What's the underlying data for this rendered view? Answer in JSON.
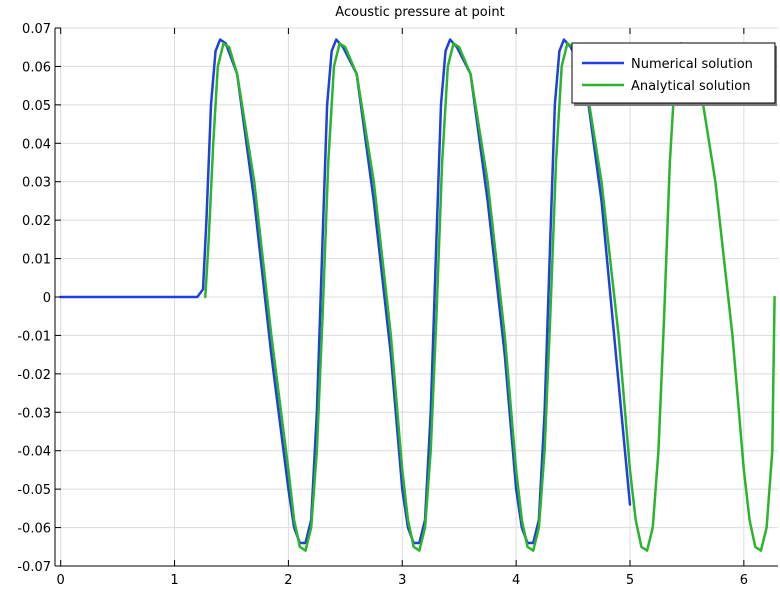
{
  "chart_data": {
    "type": "line",
    "title": "Acoustic pressure at point",
    "xlabel": "",
    "ylabel": "",
    "xlim": [
      -0.05,
      6.3
    ],
    "ylim": [
      -0.07,
      0.07
    ],
    "xticks": [
      0,
      1,
      2,
      3,
      4,
      5,
      6
    ],
    "xtick_labels": [
      "0",
      "1",
      "2",
      "3",
      "4",
      "5",
      "6"
    ],
    "yticks": [
      0.07,
      0.06,
      0.05,
      0.04,
      0.03,
      0.02,
      0.01,
      0,
      -0.01,
      -0.02,
      -0.03,
      -0.04,
      -0.05,
      -0.06,
      -0.07
    ],
    "ytick_labels": [
      "0.07",
      "0.06",
      "0.05",
      "0.04",
      "0.03",
      "0.02",
      "0.01",
      "0",
      "-0.01",
      "-0.02",
      "-0.03",
      "-0.04",
      "-0.05",
      "-0.06",
      "-0.07"
    ],
    "grid": true,
    "legend_position": "top-right",
    "series": [
      {
        "name": "Numerical solution",
        "color": "#1f3fe0",
        "x": [
          0,
          1.0,
          1.2,
          1.25,
          1.28,
          1.32,
          1.36,
          1.4,
          1.45,
          1.55,
          1.7,
          1.85,
          2.0,
          2.05,
          2.1,
          2.15,
          2.2,
          2.25,
          2.3,
          2.34,
          2.38,
          2.42,
          2.48,
          2.6,
          2.75,
          2.9,
          3.0,
          3.05,
          3.1,
          3.15,
          3.2,
          3.25,
          3.3,
          3.34,
          3.38,
          3.42,
          3.48,
          3.6,
          3.75,
          3.9,
          4.0,
          4.05,
          4.1,
          4.15,
          4.2,
          4.25,
          4.3,
          4.34,
          4.38,
          4.42,
          4.48,
          4.6,
          4.75,
          5.0
        ],
        "y": [
          0,
          0,
          0,
          0.002,
          0.02,
          0.05,
          0.064,
          0.067,
          0.066,
          0.058,
          0.025,
          -0.015,
          -0.05,
          -0.06,
          -0.064,
          -0.064,
          -0.058,
          -0.03,
          0.015,
          0.05,
          0.064,
          0.067,
          0.065,
          0.058,
          0.025,
          -0.015,
          -0.05,
          -0.06,
          -0.064,
          -0.064,
          -0.058,
          -0.03,
          0.015,
          0.05,
          0.064,
          0.067,
          0.065,
          0.058,
          0.025,
          -0.015,
          -0.05,
          -0.06,
          -0.064,
          -0.064,
          -0.058,
          -0.03,
          0.015,
          0.05,
          0.064,
          0.067,
          0.065,
          0.058,
          0.025,
          -0.054
        ]
      },
      {
        "name": "Analytical solution",
        "color": "#2ab52a",
        "x": [
          1.27,
          1.3,
          1.34,
          1.38,
          1.43,
          1.48,
          1.55,
          1.7,
          1.85,
          2.0,
          2.05,
          2.1,
          2.15,
          2.2,
          2.25,
          2.3,
          2.35,
          2.4,
          2.45,
          2.5,
          2.6,
          2.75,
          2.9,
          3.0,
          3.05,
          3.1,
          3.15,
          3.2,
          3.25,
          3.3,
          3.35,
          3.4,
          3.45,
          3.5,
          3.6,
          3.75,
          3.9,
          4.0,
          4.05,
          4.1,
          4.15,
          4.2,
          4.25,
          4.3,
          4.35,
          4.4,
          4.45,
          4.5,
          4.6,
          4.75,
          4.9,
          5.0,
          5.05,
          5.1,
          5.15,
          5.2,
          5.25,
          5.3,
          5.35,
          5.4,
          5.45,
          5.5,
          5.6,
          5.75,
          5.9,
          6.0,
          6.05,
          6.1,
          6.15,
          6.2,
          6.25,
          6.27
        ],
        "y": [
          0,
          0.015,
          0.04,
          0.06,
          0.066,
          0.065,
          0.058,
          0.03,
          -0.01,
          -0.045,
          -0.058,
          -0.065,
          -0.066,
          -0.06,
          -0.04,
          -0.005,
          0.035,
          0.06,
          0.066,
          0.065,
          0.058,
          0.03,
          -0.01,
          -0.045,
          -0.058,
          -0.065,
          -0.066,
          -0.06,
          -0.04,
          -0.005,
          0.035,
          0.06,
          0.066,
          0.065,
          0.058,
          0.03,
          -0.01,
          -0.045,
          -0.058,
          -0.065,
          -0.066,
          -0.06,
          -0.04,
          -0.005,
          0.035,
          0.06,
          0.066,
          0.065,
          0.058,
          0.03,
          -0.01,
          -0.045,
          -0.058,
          -0.065,
          -0.066,
          -0.06,
          -0.04,
          -0.005,
          0.035,
          0.06,
          0.066,
          0.065,
          0.058,
          0.03,
          -0.01,
          -0.045,
          -0.058,
          -0.065,
          -0.066,
          -0.06,
          -0.04,
          0.0
        ]
      }
    ]
  }
}
